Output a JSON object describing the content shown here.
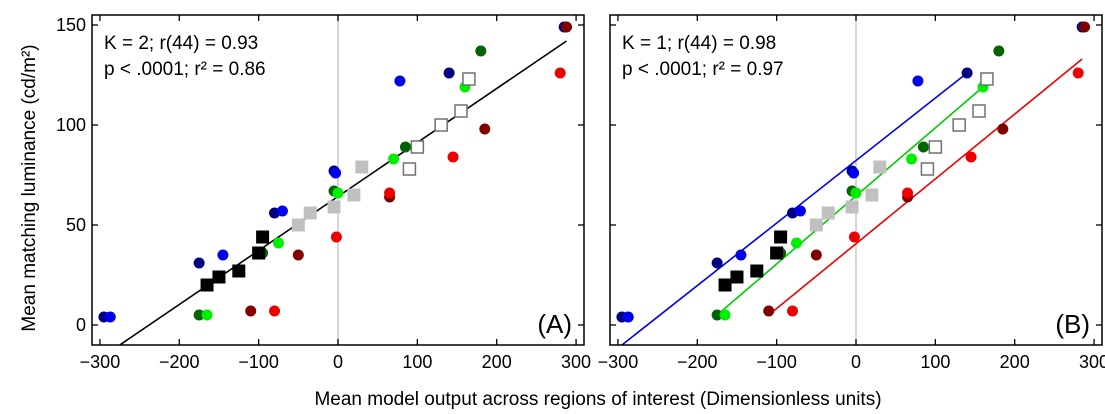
{
  "figure": {
    "ylabel": "Mean matching luminance (cd/m²)",
    "xlabel": "Mean model output across regions of interest (Dimensionless units)"
  },
  "chart_data": [
    {
      "type": "scatter",
      "panel_label": "(A)",
      "stats_line1": "K = 2; r(44) = 0.93",
      "stats_line2": "p < .0001; r² = 0.86",
      "xlim": [
        -310,
        310
      ],
      "ylim": [
        -10,
        155
      ],
      "xticks": [
        -300,
        -200,
        -100,
        0,
        100,
        200,
        300
      ],
      "yticks": [
        0,
        50,
        100,
        150
      ],
      "zero_line": true,
      "fit_lines": [
        {
          "color": "#000000",
          "x": [
            -275,
            288
          ],
          "y": [
            -10,
            142
          ]
        }
      ],
      "series": [
        {
          "color": "#000080",
          "marker": "circle",
          "points": [
            [
              -295,
              4
            ],
            [
              -175,
              31
            ],
            [
              -80,
              56
            ],
            [
              -5,
              77
            ],
            [
              140,
              126
            ],
            [
              285,
              149
            ]
          ]
        },
        {
          "color": "#0000ee",
          "marker": "circle",
          "points": [
            [
              -287,
              4
            ],
            [
              -145,
              35
            ],
            [
              -70,
              57
            ],
            [
              -3,
              76
            ],
            [
              78,
              122
            ]
          ]
        },
        {
          "color": "#006400",
          "marker": "circle",
          "points": [
            [
              -175,
              5
            ],
            [
              -95,
              36
            ],
            [
              -5,
              67
            ],
            [
              85,
              89
            ],
            [
              180,
              137
            ]
          ]
        },
        {
          "color": "#00ee00",
          "marker": "circle",
          "points": [
            [
              -165,
              5
            ],
            [
              -75,
              41
            ],
            [
              0,
              66
            ],
            [
              70,
              83
            ],
            [
              160,
              119
            ]
          ]
        },
        {
          "color": "#800000",
          "marker": "circle",
          "points": [
            [
              -110,
              7
            ],
            [
              -50,
              35
            ],
            [
              65,
              64
            ],
            [
              185,
              98
            ],
            [
              288,
              149
            ]
          ]
        },
        {
          "color": "#ee0000",
          "marker": "circle",
          "points": [
            [
              -80,
              7
            ],
            [
              -2,
              44
            ],
            [
              65,
              66
            ],
            [
              145,
              84
            ],
            [
              280,
              126
            ]
          ]
        },
        {
          "color": "#000000",
          "marker": "square-filled",
          "points": [
            [
              -165,
              20
            ],
            [
              -150,
              24
            ],
            [
              -125,
              27
            ],
            [
              -100,
              36
            ],
            [
              -95,
              44
            ]
          ]
        },
        {
          "color": "#c0c0c0",
          "marker": "square-filled",
          "points": [
            [
              -50,
              50
            ],
            [
              -35,
              56
            ],
            [
              -5,
              59
            ],
            [
              20,
              65
            ],
            [
              30,
              79
            ]
          ]
        },
        {
          "color": "#707070",
          "marker": "square-open",
          "points": [
            [
              90,
              78
            ],
            [
              100,
              89
            ],
            [
              130,
              100
            ],
            [
              155,
              107
            ],
            [
              165,
              123
            ]
          ]
        }
      ]
    },
    {
      "type": "scatter",
      "panel_label": "(B)",
      "stats_line1": "K = 1; r(44) = 0.98",
      "stats_line2": "p < .0001; r² = 0.97",
      "xlim": [
        -310,
        310
      ],
      "ylim": [
        -10,
        155
      ],
      "xticks": [
        -300,
        -200,
        -100,
        0,
        100,
        200,
        300
      ],
      "yticks": [
        0,
        50,
        100,
        150
      ],
      "zero_line": true,
      "fit_lines": [
        {
          "color": "#0000ee",
          "x": [
            -295,
            140
          ],
          "y": [
            -10,
            126
          ]
        },
        {
          "color": "#00cc00",
          "x": [
            -175,
            160
          ],
          "y": [
            5,
            119
          ]
        },
        {
          "color": "#ee0000",
          "x": [
            -110,
            285
          ],
          "y": [
            5,
            133
          ]
        }
      ],
      "series": [
        {
          "color": "#000080",
          "marker": "circle",
          "points": [
            [
              -295,
              4
            ],
            [
              -175,
              31
            ],
            [
              -80,
              56
            ],
            [
              -5,
              77
            ],
            [
              140,
              126
            ],
            [
              285,
              149
            ]
          ]
        },
        {
          "color": "#0000ee",
          "marker": "circle",
          "points": [
            [
              -287,
              4
            ],
            [
              -145,
              35
            ],
            [
              -70,
              57
            ],
            [
              -3,
              76
            ],
            [
              78,
              122
            ]
          ]
        },
        {
          "color": "#006400",
          "marker": "circle",
          "points": [
            [
              -175,
              5
            ],
            [
              -95,
              36
            ],
            [
              -5,
              67
            ],
            [
              85,
              89
            ],
            [
              180,
              137
            ]
          ]
        },
        {
          "color": "#00ee00",
          "marker": "circle",
          "points": [
            [
              -165,
              5
            ],
            [
              -75,
              41
            ],
            [
              0,
              66
            ],
            [
              70,
              83
            ],
            [
              160,
              119
            ]
          ]
        },
        {
          "color": "#800000",
          "marker": "circle",
          "points": [
            [
              -110,
              7
            ],
            [
              -50,
              35
            ],
            [
              65,
              64
            ],
            [
              185,
              98
            ],
            [
              288,
              149
            ]
          ]
        },
        {
          "color": "#ee0000",
          "marker": "circle",
          "points": [
            [
              -80,
              7
            ],
            [
              -2,
              44
            ],
            [
              65,
              66
            ],
            [
              145,
              84
            ],
            [
              280,
              126
            ]
          ]
        },
        {
          "color": "#000000",
          "marker": "square-filled",
          "points": [
            [
              -165,
              20
            ],
            [
              -150,
              24
            ],
            [
              -125,
              27
            ],
            [
              -100,
              36
            ],
            [
              -95,
              44
            ]
          ]
        },
        {
          "color": "#c0c0c0",
          "marker": "square-filled",
          "points": [
            [
              -50,
              50
            ],
            [
              -35,
              56
            ],
            [
              -5,
              59
            ],
            [
              20,
              65
            ],
            [
              30,
              79
            ]
          ]
        },
        {
          "color": "#707070",
          "marker": "square-open",
          "points": [
            [
              90,
              78
            ],
            [
              100,
              89
            ],
            [
              130,
              100
            ],
            [
              155,
              107
            ],
            [
              165,
              123
            ]
          ]
        }
      ]
    }
  ]
}
